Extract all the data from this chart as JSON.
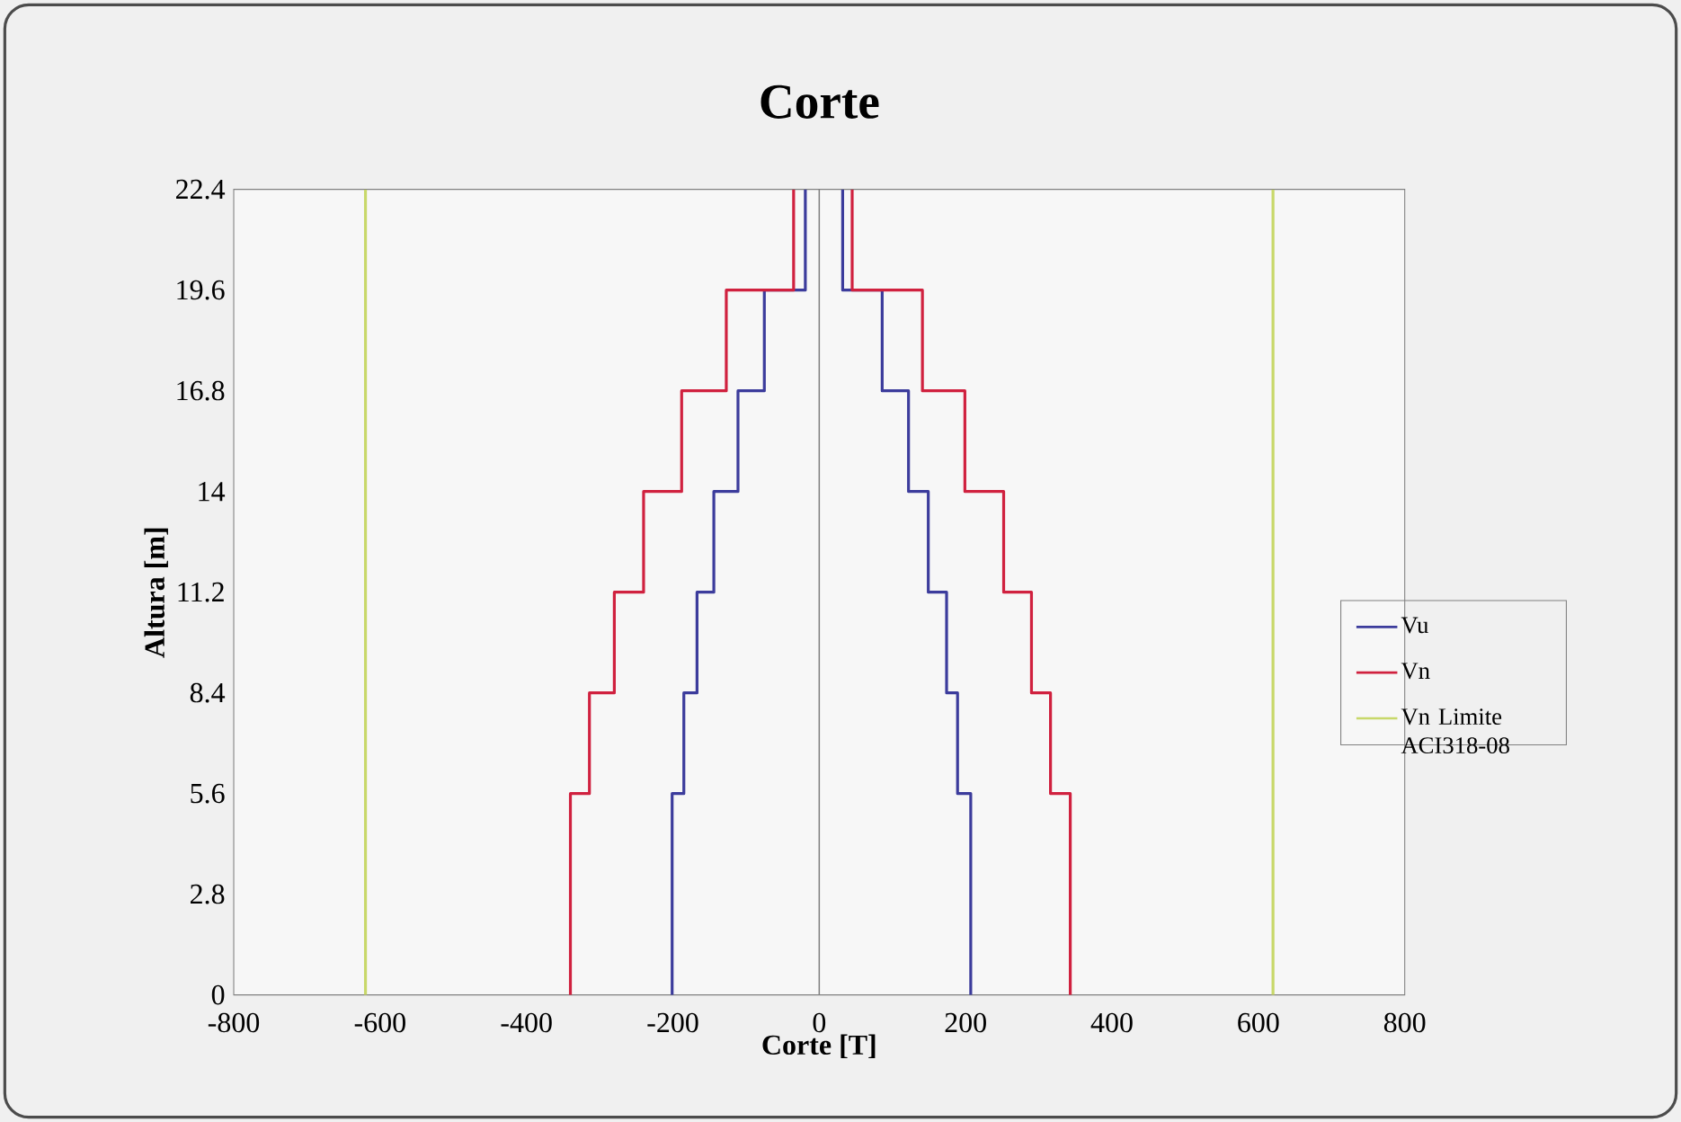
{
  "chart_data": {
    "type": "line",
    "title": "Corte",
    "xlabel": "Corte [T]",
    "ylabel": "Altura [m]",
    "xlim": [
      -800,
      800
    ],
    "xticks": [
      -800,
      -600,
      -400,
      -200,
      0,
      200,
      400,
      600,
      800
    ],
    "ylim": [
      0,
      22.4
    ],
    "yticks": [
      0,
      2.8,
      5.6,
      8.4,
      11.2,
      14,
      16.8,
      19.6,
      22.4
    ],
    "legend": "right",
    "grid": false,
    "marker": "none",
    "line_style": "solid",
    "ref_lines": [
      {
        "axis": "x",
        "value": 0,
        "color": "#808080"
      }
    ],
    "series": [
      {
        "name": "Vu",
        "color": "#3c3c9c",
        "x": [
          -201,
          -201,
          -185,
          -185,
          -167,
          -167,
          -144,
          -144,
          -111,
          -111,
          -75,
          -75,
          -19,
          -19
        ],
        "values": [
          0,
          5.6,
          5.6,
          8.4,
          8.4,
          11.2,
          11.2,
          14,
          14,
          16.8,
          16.8,
          19.6,
          19.6,
          22.4
        ]
      },
      {
        "color": "#3c3c9c",
        "x": [
          207,
          207,
          189,
          189,
          174,
          174,
          149,
          149,
          122,
          122,
          86,
          86,
          32,
          32
        ],
        "values": [
          0,
          5.6,
          5.6,
          8.4,
          8.4,
          11.2,
          11.2,
          14,
          14,
          16.8,
          16.8,
          19.6,
          19.6,
          22.4
        ]
      },
      {
        "name": "Vn",
        "color": "#d0213f",
        "x": [
          -340,
          -340,
          -314,
          -314,
          -280,
          -280,
          -240,
          -240,
          -188,
          -188,
          -127,
          -127,
          -35,
          -35
        ],
        "values": [
          0,
          5.6,
          5.6,
          8.4,
          8.4,
          11.2,
          11.2,
          14,
          14,
          16.8,
          16.8,
          19.6,
          19.6,
          22.4
        ]
      },
      {
        "color": "#d0213f",
        "x": [
          343,
          343,
          316,
          316,
          290,
          290,
          252,
          252,
          199,
          199,
          141,
          141,
          45,
          45
        ],
        "values": [
          0,
          5.6,
          5.6,
          8.4,
          8.4,
          11.2,
          11.2,
          14,
          14,
          16.8,
          16.8,
          19.6,
          19.6,
          22.4
        ]
      },
      {
        "name": "Vn Limite ACI318-08",
        "color": "#c8d86a",
        "x": [
          -620,
          -620
        ],
        "values": [
          0,
          22.4
        ]
      },
      {
        "color": "#c8d86a",
        "x": [
          620,
          620
        ],
        "values": [
          0,
          22.4
        ]
      }
    ]
  }
}
